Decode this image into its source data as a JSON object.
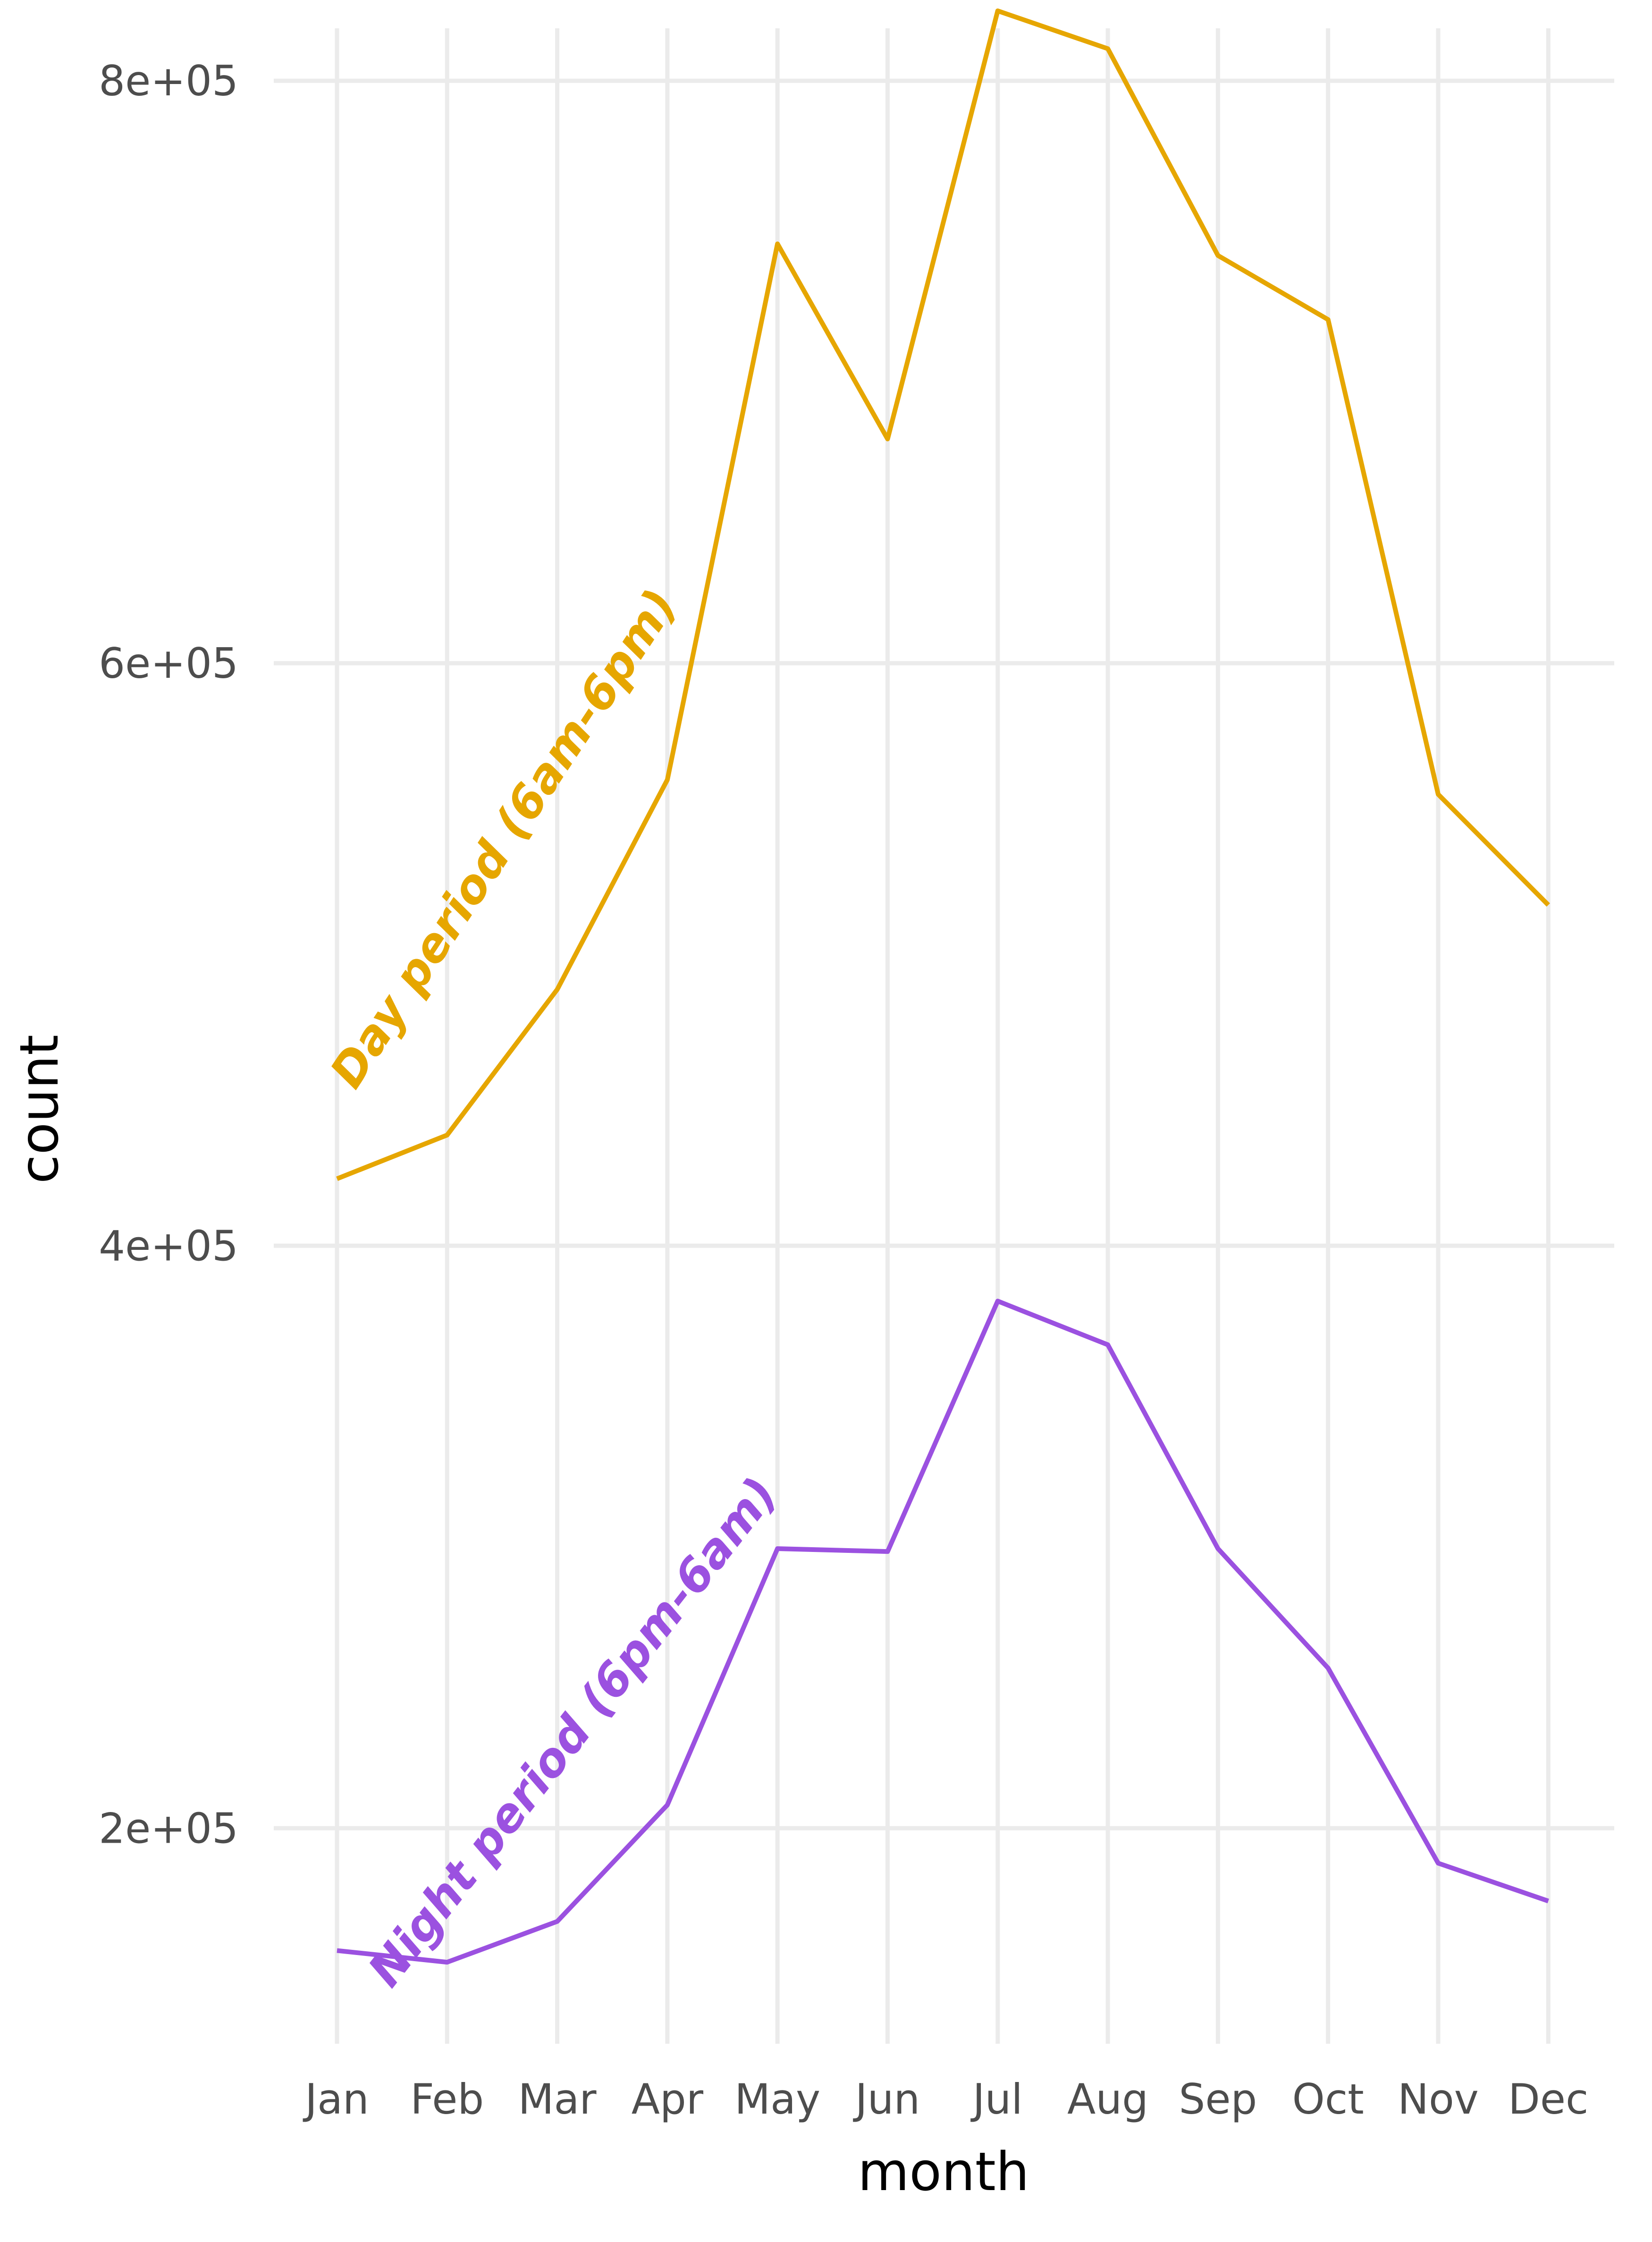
{
  "chart_data": {
    "type": "line",
    "xlabel": "month",
    "ylabel": "count",
    "categories": [
      "Jan",
      "Feb",
      "Mar",
      "Apr",
      "May",
      "Jun",
      "Jul",
      "Aug",
      "Sep",
      "Oct",
      "Nov",
      "Dec"
    ],
    "yticks": [
      200000,
      400000,
      600000,
      800000
    ],
    "ytick_labels": [
      "2e+05",
      "4e+05",
      "6e+05",
      "8e+05"
    ],
    "ylim": [
      126000,
      818000
    ],
    "grid": true,
    "legend": "none (direct labels on lines)",
    "series": [
      {
        "name": "Day period (6am-6pm)",
        "color": "#E6A600",
        "values": [
          423000,
          438000,
          488000,
          560000,
          744000,
          677000,
          824000,
          811000,
          740000,
          718000,
          555000,
          517000
        ]
      },
      {
        "name": "Night period (6pm-6am)",
        "color": "#9B51E0",
        "values": [
          158000,
          154000,
          168000,
          208000,
          296000,
          295000,
          381000,
          366000,
          296000,
          255000,
          188000,
          175000
        ]
      }
    ]
  }
}
